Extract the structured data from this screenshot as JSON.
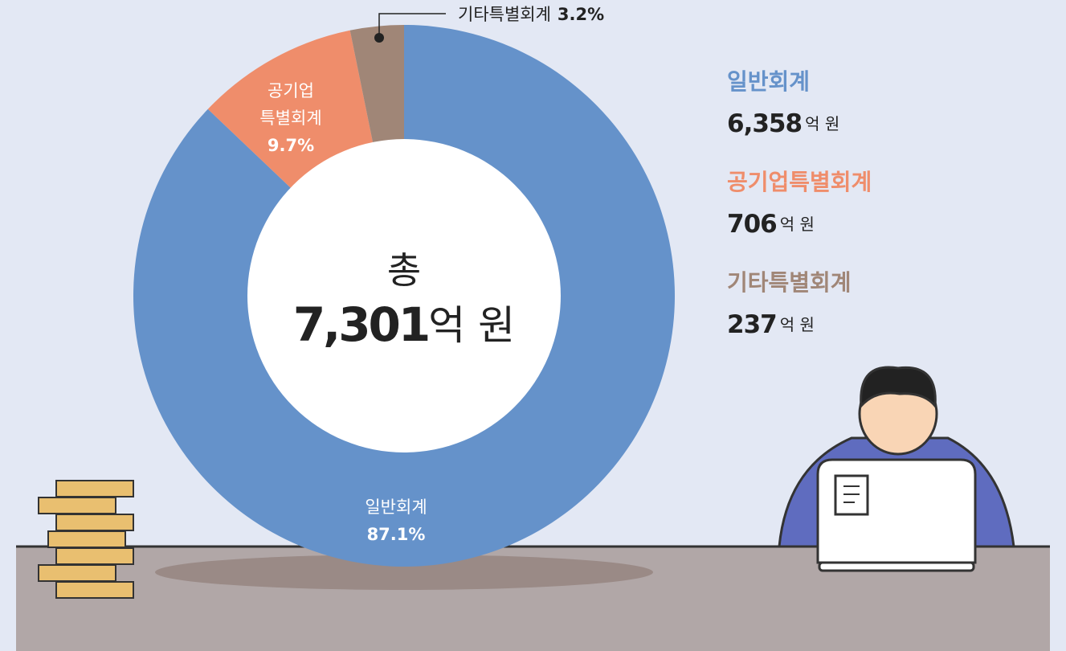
{
  "chart_data": {
    "type": "pie",
    "donut": true,
    "center_label": "총",
    "total": {
      "value": 7301,
      "label": "7,301"
    },
    "unit": "억 원",
    "categories": [
      "일반회계",
      "공기업특별회계",
      "기타특별회계"
    ],
    "slice_labels": [
      [
        "일반회계"
      ],
      [
        "공기업",
        "특별회계"
      ],
      [
        "기타특별회계"
      ]
    ],
    "values": [
      87.1,
      9.7,
      3.2
    ],
    "value_labels": [
      "87.1%",
      "9.7%",
      "3.2%"
    ],
    "amounts": [
      6358,
      706,
      237
    ],
    "amount_labels": [
      "6,358",
      "706",
      "237"
    ],
    "colors": [
      "#6592ca",
      "#ef8d6b",
      "#a08677"
    ]
  }
}
